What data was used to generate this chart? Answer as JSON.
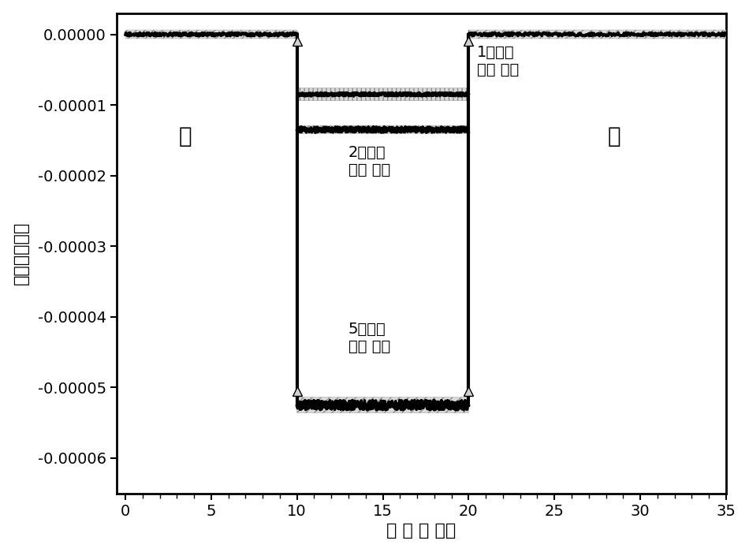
{
  "title": "",
  "xlabel": "时 间 （ 秒）",
  "ylabel": "电流（安培）",
  "xlim": [
    -0.5,
    35
  ],
  "ylim": [
    -6.5e-05,
    3e-06
  ],
  "xticks": [
    0,
    5,
    10,
    15,
    20,
    25,
    30,
    35
  ],
  "yticks": [
    0.0,
    -1e-05,
    -2e-05,
    -3e-05,
    -4e-05,
    -5e-05,
    -6e-05
  ],
  "ytick_labels": [
    "0.00000",
    "-0.00001",
    "-0.00002",
    "-0.00003",
    "-0.00004",
    "-0.00005",
    "-0.00006"
  ],
  "dark_current": 0.0,
  "light_on": 10,
  "light_off": 20,
  "current_1mW": -8.5e-06,
  "current_2mW": -1.35e-05,
  "current_5mW": -5.25e-05,
  "label_1mw": "1毫瓦每\n平方 厘米",
  "label_2mw": "2毫瓦每\n平方 厘米",
  "label_5mw": "5毫瓦每\n平方 厘米",
  "label_dark1": "暗",
  "label_dark2": "暗",
  "line_color": "#000000",
  "background_color": "#ffffff",
  "tick_fontsize": 14,
  "label_fontsize": 16,
  "annotation_fontsize": 14,
  "dark_fontsize": 20
}
